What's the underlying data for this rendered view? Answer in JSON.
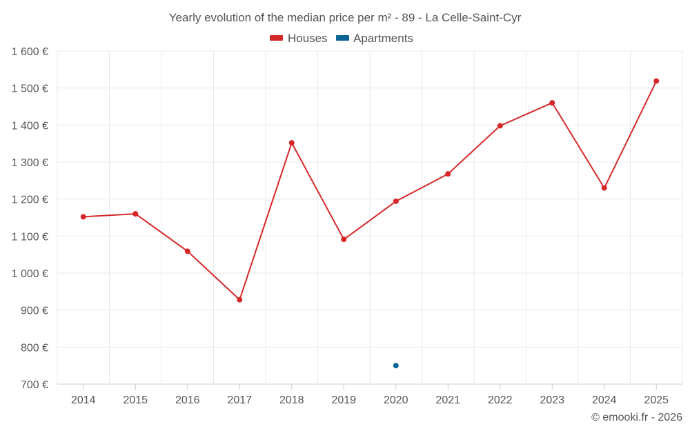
{
  "chart_data": {
    "type": "line",
    "title": "Yearly evolution of the median price per m² - 89 - La Celle-Saint-Cyr",
    "categories": [
      "2014",
      "2015",
      "2016",
      "2017",
      "2018",
      "2019",
      "2020",
      "2021",
      "2022",
      "2023",
      "2024",
      "2025"
    ],
    "series": [
      {
        "name": "Houses",
        "color": "#d62728",
        "values": [
          1152,
          1160,
          1059,
          928,
          1352,
          1091,
          1194,
          1268,
          1398,
          1460,
          1230,
          1519
        ]
      },
      {
        "name": "Apartments",
        "color": "#0a6496",
        "values": [
          null,
          null,
          null,
          null,
          null,
          null,
          750,
          null,
          null,
          null,
          null,
          null
        ]
      }
    ],
    "y_ticks": [
      700,
      800,
      900,
      1000,
      1100,
      1200,
      1300,
      1400,
      1500,
      1600
    ],
    "y_tick_labels": [
      "700 €",
      "800 €",
      "900 €",
      "1 000 €",
      "1 100 €",
      "1 200 €",
      "1 300 €",
      "1 400 €",
      "1 500 €",
      "1 600 €"
    ],
    "ylim": [
      700,
      1600
    ],
    "grid": true,
    "legend_position": "top-center",
    "xlabel": "",
    "ylabel": ""
  },
  "credit": "© emooki.fr - 2026"
}
